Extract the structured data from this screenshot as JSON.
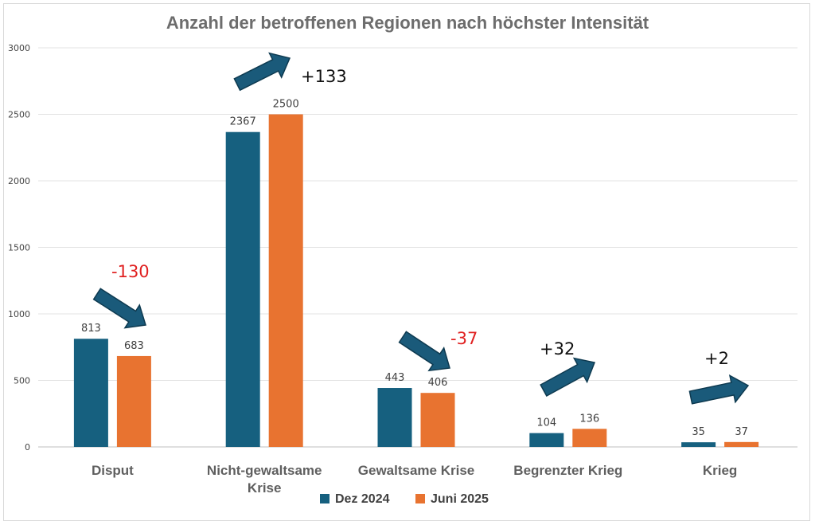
{
  "chart_data": {
    "type": "bar",
    "title": "Anzahl der betroffenen Regionen nach höchster Intensität",
    "categories": [
      "Disput",
      "Nicht-gewaltsame Krise",
      "Gewaltsame Krise",
      "Begrenzter Krieg",
      "Krieg"
    ],
    "series": [
      {
        "name": "Dez 2024",
        "values": [
          813,
          2367,
          443,
          104,
          35
        ],
        "color": "#16607f"
      },
      {
        "name": "Juni 2025",
        "values": [
          683,
          2500,
          406,
          136,
          37
        ],
        "color": "#e87330"
      }
    ],
    "ylim": [
      0,
      3000
    ],
    "yticks": [
      "0",
      "500",
      "1000",
      "1500",
      "2000",
      "2500",
      "3000"
    ],
    "grid": true,
    "legend_position": "bottom",
    "annotations": [
      {
        "category": "Disput",
        "text": "-130",
        "direction": "down",
        "color": "#e02020"
      },
      {
        "category": "Nicht-gewaltsame Krise",
        "text": "+133",
        "direction": "up",
        "color": "#111111"
      },
      {
        "category": "Gewaltsame Krise",
        "text": "-37",
        "direction": "down",
        "color": "#e02020"
      },
      {
        "category": "Begrenzter Krieg",
        "text": "+32",
        "direction": "up",
        "color": "#111111"
      },
      {
        "category": "Krieg",
        "text": "+2",
        "direction": "up",
        "color": "#111111"
      }
    ],
    "arrow_color": "#1a5a7a"
  }
}
